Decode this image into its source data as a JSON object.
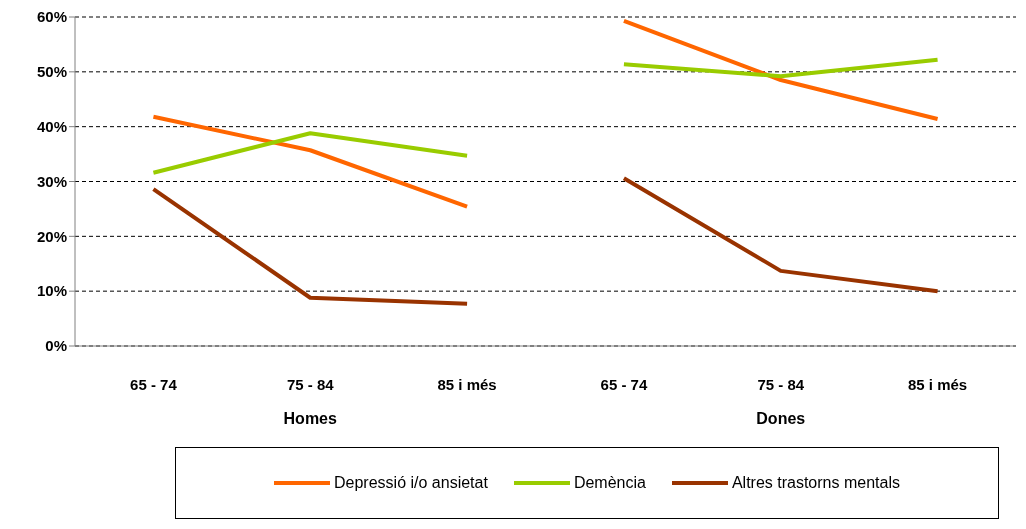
{
  "chart_data": {
    "type": "line",
    "categories": [
      "65 - 74",
      "75 - 84",
      "85 i més",
      "65 - 74",
      "75 - 84",
      "85 i més"
    ],
    "annotations": [
      "Homes",
      "Dones"
    ],
    "series": [
      {
        "name": "Depressió i/o ansietat",
        "color": "#ff6600",
        "values": [
          41.8,
          35.7,
          25.4,
          59.3,
          48.5,
          41.4
        ]
      },
      {
        "name": "Demència",
        "color": "#99cc00",
        "values": [
          31.6,
          38.8,
          34.7,
          51.4,
          49.2,
          52.2
        ]
      },
      {
        "name": "Altres trastorns mentals",
        "color": "#993300",
        "values": [
          28.6,
          8.8,
          7.7,
          30.6,
          13.7,
          10.0
        ]
      }
    ],
    "ylim": [
      0,
      60
    ],
    "yticks": [
      {
        "value": 0,
        "label": "0%"
      },
      {
        "value": 10,
        "label": "10%"
      },
      {
        "value": 20,
        "label": "20%"
      },
      {
        "value": 30,
        "label": "30%"
      },
      {
        "value": 40,
        "label": "40%"
      },
      {
        "value": 50,
        "label": "50%"
      },
      {
        "value": 60,
        "label": "60%"
      }
    ],
    "grid": "y",
    "legend": "bottom",
    "marker": "none",
    "line_style": "solid"
  }
}
